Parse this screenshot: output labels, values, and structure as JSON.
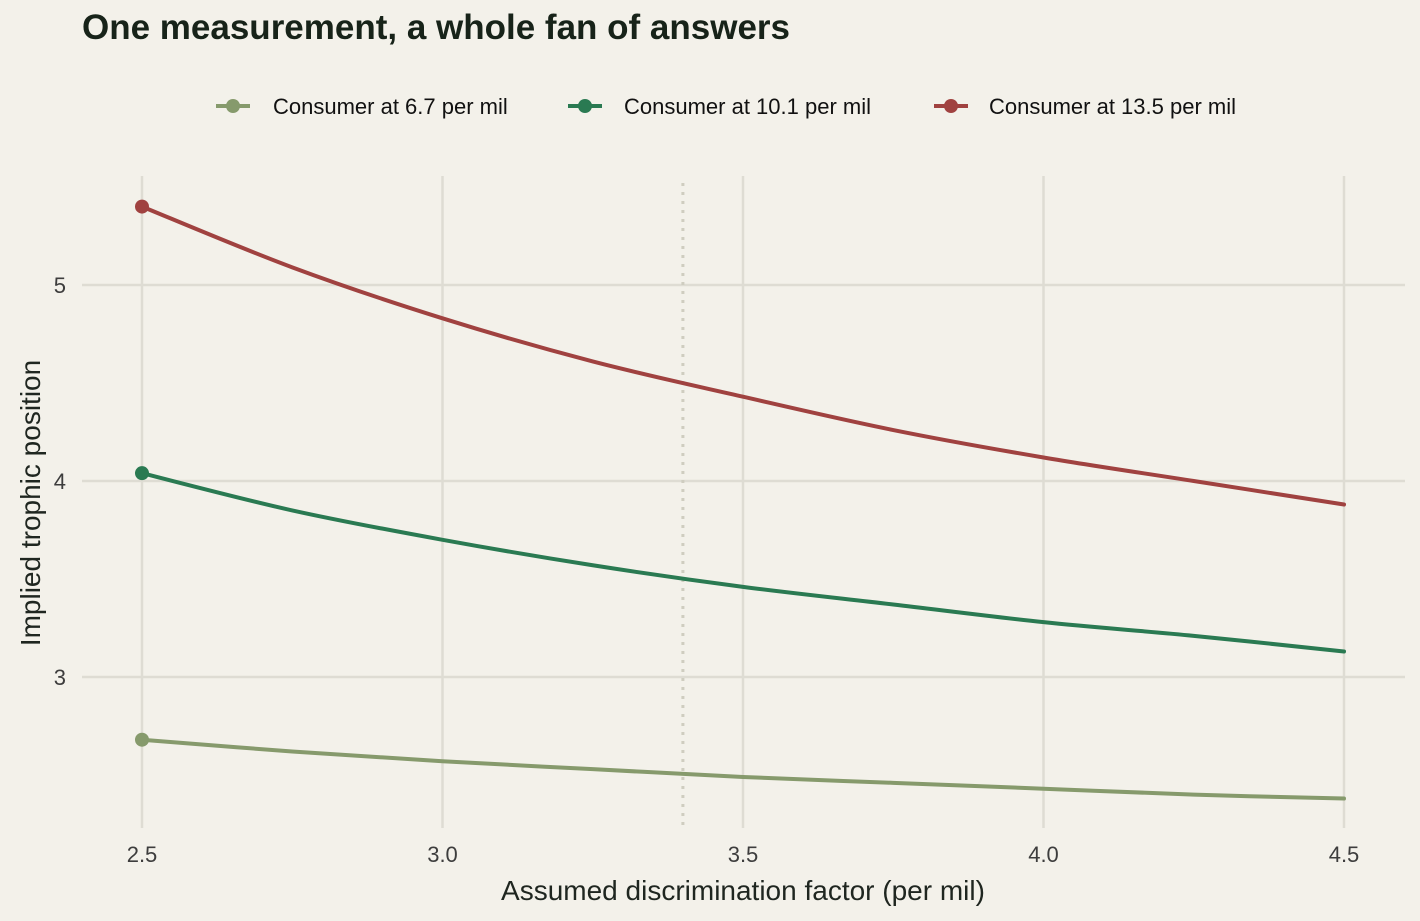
{
  "chart_data": {
    "type": "line",
    "title": "One measurement, a whole fan of answers",
    "xlabel": "Assumed discrimination factor (per mil)",
    "ylabel": "Implied trophic position",
    "xlim": [
      2.5,
      4.5
    ],
    "ylim": [
      2.3,
      5.55
    ],
    "x_ticks": [
      "2.5",
      "3.0",
      "3.5",
      "4.0",
      "4.5"
    ],
    "y_ticks": [
      "3",
      "4",
      "5"
    ],
    "grid": true,
    "legend_position": "top",
    "reference_line_x": 3.4,
    "x": [
      2.5,
      2.75,
      3.0,
      3.25,
      3.5,
      3.75,
      4.0,
      4.25,
      4.5
    ],
    "series": [
      {
        "name": "Consumer at 6.7 per mil",
        "color": "#869a6c",
        "values": [
          2.68,
          2.62,
          2.57,
          2.53,
          2.49,
          2.46,
          2.43,
          2.4,
          2.38
        ]
      },
      {
        "name": "Consumer at 10.1 per mil",
        "color": "#2a7a52",
        "values": [
          4.04,
          3.85,
          3.7,
          3.57,
          3.46,
          3.37,
          3.28,
          3.21,
          3.13
        ]
      },
      {
        "name": "Consumer at 13.5 per mil",
        "color": "#a04240",
        "values": [
          5.4,
          5.09,
          4.83,
          4.61,
          4.43,
          4.26,
          4.12,
          4.0,
          3.88
        ]
      }
    ]
  }
}
